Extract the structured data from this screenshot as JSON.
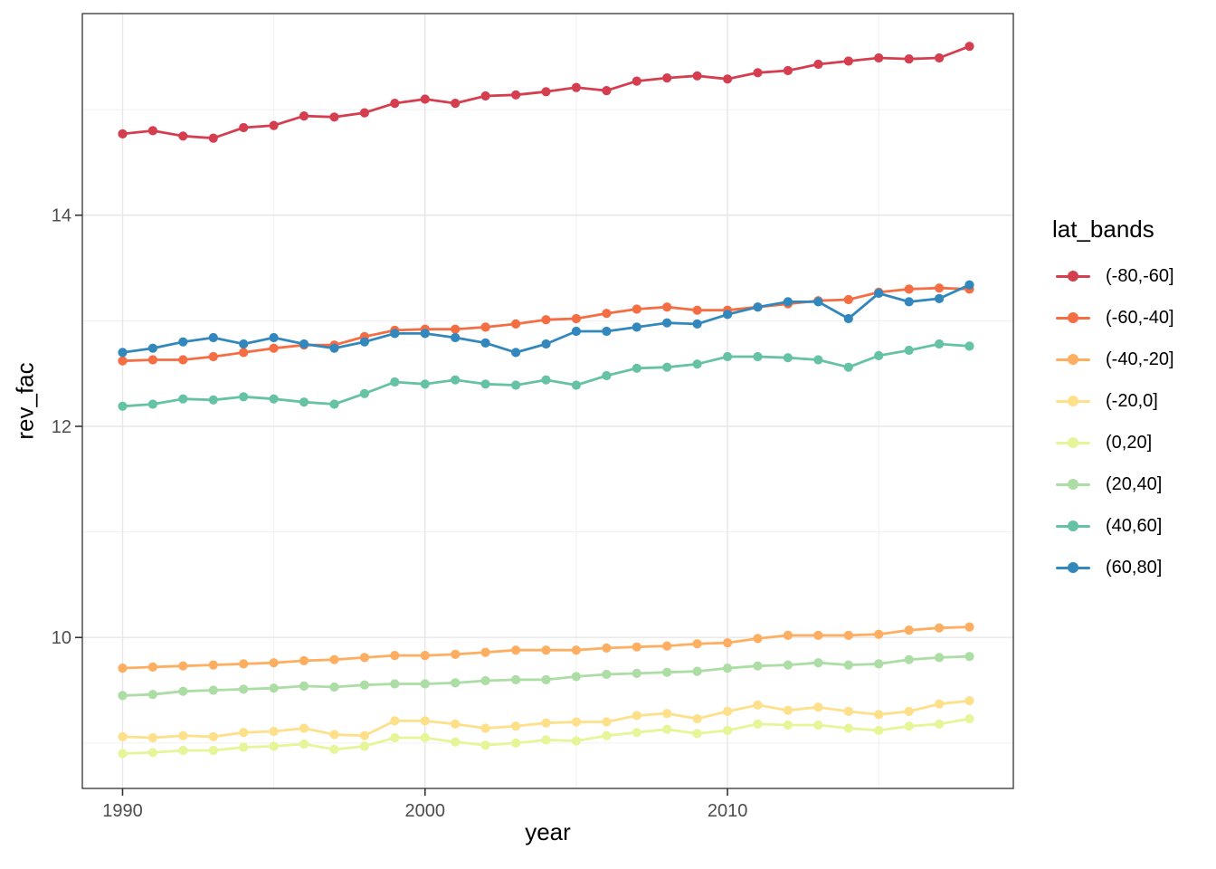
{
  "figure": {
    "background_color": "#ffffff",
    "panel_border_color": "#333333",
    "grid_major_color": "#e7e7e7",
    "grid_minor_color": "#f0f0f0",
    "tick_mark_color": "#333333",
    "tick_label_color": "#4d4d4d",
    "axis_title_color": "#000000"
  },
  "axes": {
    "x_title": "year",
    "y_title": "rev_fac"
  },
  "legend": {
    "title": "lat_bands"
  },
  "chart_data": {
    "type": "line",
    "title": "",
    "xlabel": "year",
    "ylabel": "rev_fac",
    "legend_title": "lat_bands",
    "legend_position": "right",
    "grid": true,
    "marker": "circle",
    "x": [
      1990,
      1991,
      1992,
      1993,
      1994,
      1995,
      1996,
      1997,
      1998,
      1999,
      2000,
      2001,
      2002,
      2003,
      2004,
      2005,
      2006,
      2007,
      2008,
      2009,
      2010,
      2011,
      2012,
      2013,
      2014,
      2015,
      2016,
      2017,
      2018
    ],
    "x_domain": [
      1988.67,
      2019.45
    ],
    "y_domain": [
      8.57,
      15.91
    ],
    "x_ticks": [
      1990,
      2000,
      2010
    ],
    "x_minor_ticks": [
      1995,
      2005,
      2015
    ],
    "y_ticks": [
      10,
      12,
      14
    ],
    "y_minor_ticks": [
      9,
      11,
      13,
      15
    ],
    "series": [
      {
        "name": "(-80,-60]",
        "color": "#d53e4f",
        "values": [
          14.77,
          14.8,
          14.75,
          14.73,
          14.83,
          14.85,
          14.94,
          14.93,
          14.97,
          15.06,
          15.1,
          15.06,
          15.13,
          15.14,
          15.17,
          15.21,
          15.18,
          15.27,
          15.3,
          15.32,
          15.29,
          15.35,
          15.37,
          15.43,
          15.46,
          15.49,
          15.48,
          15.49,
          15.6
        ]
      },
      {
        "name": "(-60,-40]",
        "color": "#f46d43",
        "values": [
          12.62,
          12.63,
          12.63,
          12.66,
          12.7,
          12.74,
          12.77,
          12.77,
          12.85,
          12.91,
          12.92,
          12.92,
          12.94,
          12.97,
          13.01,
          13.02,
          13.07,
          13.11,
          13.13,
          13.1,
          13.1,
          13.13,
          13.16,
          13.19,
          13.2,
          13.27,
          13.3,
          13.31,
          13.3
        ]
      },
      {
        "name": "(-40,-20]",
        "color": "#fdae61",
        "values": [
          9.71,
          9.72,
          9.73,
          9.74,
          9.75,
          9.76,
          9.78,
          9.79,
          9.81,
          9.83,
          9.83,
          9.84,
          9.86,
          9.88,
          9.88,
          9.88,
          9.9,
          9.91,
          9.92,
          9.94,
          9.95,
          9.99,
          10.02,
          10.02,
          10.02,
          10.03,
          10.07,
          10.09,
          10.1
        ]
      },
      {
        "name": "(-20,0]",
        "color": "#fee08b",
        "values": [
          9.06,
          9.05,
          9.07,
          9.06,
          9.1,
          9.11,
          9.14,
          9.08,
          9.07,
          9.21,
          9.21,
          9.18,
          9.14,
          9.16,
          9.19,
          9.2,
          9.2,
          9.26,
          9.28,
          9.23,
          9.3,
          9.36,
          9.31,
          9.34,
          9.3,
          9.27,
          9.3,
          9.37,
          9.4
        ]
      },
      {
        "name": "(0,20]",
        "color": "#e6f598",
        "values": [
          8.9,
          8.91,
          8.93,
          8.93,
          8.96,
          8.97,
          8.99,
          8.94,
          8.97,
          9.05,
          9.05,
          9.01,
          8.98,
          9.0,
          9.03,
          9.02,
          9.07,
          9.1,
          9.13,
          9.09,
          9.12,
          9.18,
          9.17,
          9.17,
          9.14,
          9.12,
          9.16,
          9.18,
          9.23
        ]
      },
      {
        "name": "(20,40]",
        "color": "#abdda4",
        "values": [
          9.45,
          9.46,
          9.49,
          9.5,
          9.51,
          9.52,
          9.54,
          9.53,
          9.55,
          9.56,
          9.56,
          9.57,
          9.59,
          9.6,
          9.6,
          9.63,
          9.65,
          9.66,
          9.67,
          9.68,
          9.71,
          9.73,
          9.74,
          9.76,
          9.74,
          9.75,
          9.79,
          9.81,
          9.82
        ]
      },
      {
        "name": "(40,60]",
        "color": "#66c2a5",
        "values": [
          12.19,
          12.21,
          12.26,
          12.25,
          12.28,
          12.26,
          12.23,
          12.21,
          12.31,
          12.42,
          12.4,
          12.44,
          12.4,
          12.39,
          12.44,
          12.39,
          12.48,
          12.55,
          12.56,
          12.59,
          12.66,
          12.66,
          12.65,
          12.63,
          12.56,
          12.67,
          12.72,
          12.78,
          12.76
        ]
      },
      {
        "name": "(60,80]",
        "color": "#3288bd",
        "values": [
          12.7,
          12.74,
          12.8,
          12.84,
          12.78,
          12.84,
          12.78,
          12.74,
          12.8,
          12.88,
          12.88,
          12.84,
          12.79,
          12.7,
          12.78,
          12.9,
          12.9,
          12.94,
          12.98,
          12.97,
          13.06,
          13.13,
          13.18,
          13.18,
          13.02,
          13.26,
          13.18,
          13.21,
          13.34
        ]
      }
    ]
  }
}
